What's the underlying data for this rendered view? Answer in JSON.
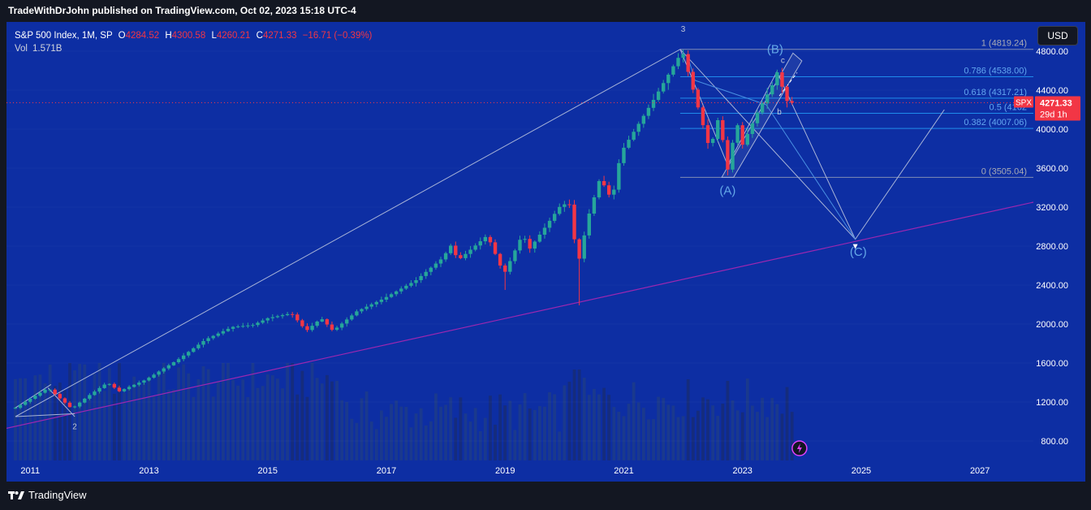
{
  "header": {
    "publish_line": "TradeWithDrJohn published on TradingView.com, Oct 02, 2023 15:18 UTC-4"
  },
  "legend": {
    "symbol": "S&P 500 Index, 1M, SP",
    "o_label": "O",
    "o_value": "4284.52",
    "h_label": "H",
    "h_value": "4300.58",
    "l_label": "L",
    "l_value": "4260.21",
    "c_label": "C",
    "c_value": "4271.33",
    "change": "−16.71 (−0.39%)",
    "vol_label": "Vol",
    "vol_value": "1.571B"
  },
  "currency_button": "USD",
  "price_badge": {
    "symbol": "SPX",
    "price": "4271.33",
    "countdown": "29d 1h"
  },
  "footer": {
    "brand": "TradingView"
  },
  "colors": {
    "background": "#0d2ea3",
    "up": "#26a69a",
    "down": "#f23645",
    "trendline": "#9c27b0",
    "fib_blue": "#2196f3",
    "annotation": "#a8b4d8",
    "wave_label": "#64a8e8"
  },
  "chart_data": {
    "type": "candlestick",
    "symbol": "S&P 500 Index",
    "interval": "1M",
    "ylim": [
      600,
      5100
    ],
    "yticks": [
      800,
      1200,
      1600,
      2000,
      2400,
      2800,
      3200,
      3600,
      4000,
      4400,
      4800
    ],
    "ytick_labels": [
      "800.00",
      "1200.00",
      "1600.00",
      "2000.00",
      "2400.00",
      "2800.00",
      "3200.00",
      "3600.00",
      "4000.00",
      "4400.00",
      "4800.00"
    ],
    "xlim": [
      2010.6,
      2027.9
    ],
    "xticks": [
      2011,
      2013,
      2015,
      2017,
      2019,
      2021,
      2023,
      2025,
      2027
    ],
    "xtick_labels": [
      "2011",
      "2013",
      "2015",
      "2017",
      "2019",
      "2021",
      "2023",
      "2025",
      "2027"
    ],
    "last_close": 4271.33,
    "anchors": [
      [
        2010.75,
        1140
      ],
      [
        2011.3,
        1345
      ],
      [
        2011.7,
        1130
      ],
      [
        2011.95,
        1250
      ],
      [
        2012.3,
        1400
      ],
      [
        2012.5,
        1310
      ],
      [
        2012.95,
        1430
      ],
      [
        2013.5,
        1640
      ],
      [
        2013.95,
        1840
      ],
      [
        2014.4,
        1970
      ],
      [
        2014.75,
        1990
      ],
      [
        2015.0,
        2060
      ],
      [
        2015.4,
        2110
      ],
      [
        2015.65,
        1930
      ],
      [
        2015.9,
        2060
      ],
      [
        2016.1,
        1930
      ],
      [
        2016.5,
        2130
      ],
      [
        2016.95,
        2260
      ],
      [
        2017.5,
        2450
      ],
      [
        2017.95,
        2680
      ],
      [
        2018.1,
        2820
      ],
      [
        2018.2,
        2650
      ],
      [
        2018.7,
        2910
      ],
      [
        2018.98,
        2510
      ],
      [
        2019.3,
        2930
      ],
      [
        2019.4,
        2760
      ],
      [
        2019.95,
        3230
      ],
      [
        2020.1,
        3225
      ],
      [
        2020.22,
        2585
      ],
      [
        2020.4,
        3100
      ],
      [
        2020.6,
        3500
      ],
      [
        2020.8,
        3270
      ],
      [
        2020.95,
        3760
      ],
      [
        2021.5,
        4300
      ],
      [
        2021.95,
        4766
      ],
      [
        2022.0,
        4770
      ],
      [
        2022.45,
        3785
      ],
      [
        2022.6,
        4130
      ],
      [
        2022.75,
        3585
      ],
      [
        2022.9,
        4080
      ],
      [
        2023.0,
        3840
      ],
      [
        2023.25,
        4170
      ],
      [
        2023.5,
        4450
      ],
      [
        2023.58,
        4589
      ],
      [
        2023.75,
        4288
      ],
      [
        2023.83,
        4271.33
      ]
    ],
    "volume_ylim": [
      0,
      6
    ],
    "fib_levels": [
      {
        "label": "1 (4819.24)",
        "value": 4819.24
      },
      {
        "label": "0.786 (4538.00)",
        "value": 4538.0
      },
      {
        "label": "0.618 (4317.21)",
        "value": 4317.21
      },
      {
        "label": "0.5 (4162",
        "value": 4162.0
      },
      {
        "label": "0.382 (4007.06)",
        "value": 4007.06
      },
      {
        "label": "0 (3505.04)",
        "value": 3505.04
      }
    ],
    "wave_labels": [
      {
        "label": "(A)",
        "x": 2022.75,
        "y": 3330
      },
      {
        "label": "(B)",
        "x": 2023.55,
        "y": 4780
      },
      {
        "label": "(C)",
        "x": 2024.95,
        "y": 2700
      },
      {
        "label": "3",
        "x": 2022.0,
        "y": 5000
      },
      {
        "label": "2",
        "x": 2011.75,
        "y": 920
      },
      {
        "label": "c",
        "x": 2023.68,
        "y": 4680
      },
      {
        "label": "b",
        "x": 2023.62,
        "y": 4150
      }
    ],
    "trendline": [
      [
        2010.6,
        930
      ],
      [
        2027.9,
        3250
      ]
    ],
    "big_wedge": [
      [
        2010.75,
        1050
      ],
      [
        2021.95,
        4819
      ],
      [
        2024.9,
        2870
      ],
      [
        2026.4,
        4200
      ]
    ],
    "big_wedge_low": [
      [
        2010.75,
        1050
      ],
      [
        2011.75,
        1080
      ]
    ],
    "abc_path": [
      [
        2021.95,
        4819
      ],
      [
        2022.75,
        3630
      ],
      [
        2023.58,
        4589
      ],
      [
        2024.9,
        2870
      ]
    ],
    "blue_path": [
      [
        2022.1,
        4700
      ],
      [
        2022.2,
        4500
      ],
      [
        2023.4,
        4250
      ],
      [
        2024.9,
        2870
      ]
    ],
    "channel": [
      [
        2022.65,
        3505
      ],
      [
        2023.85,
        4780
      ],
      [
        2022.85,
        3505
      ],
      [
        2024.0,
        4700
      ]
    ],
    "projection_line": [
      [
        2023.62,
        4340
      ],
      [
        2023.92,
        4580
      ]
    ]
  },
  "labels": {}
}
